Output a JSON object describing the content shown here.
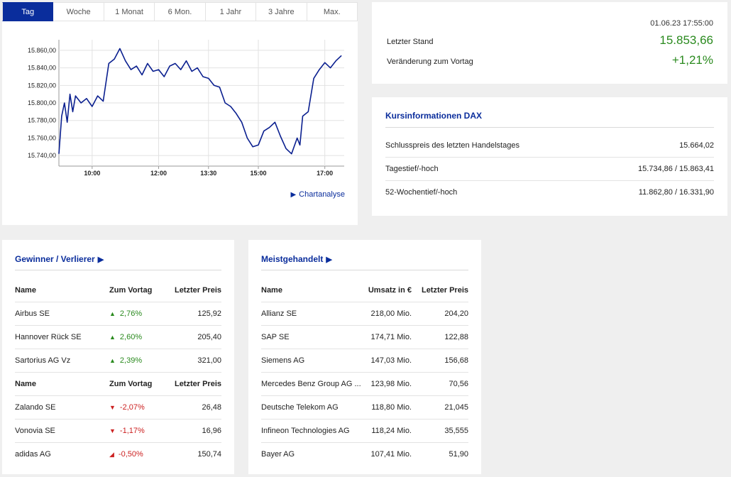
{
  "chart": {
    "tabs": [
      {
        "label": "Tag",
        "active": true
      },
      {
        "label": "Woche",
        "active": false
      },
      {
        "label": "1 Monat",
        "active": false
      },
      {
        "label": "6 Mon.",
        "active": false
      },
      {
        "label": "1 Jahr",
        "active": false
      },
      {
        "label": "3 Jahre",
        "active": false
      },
      {
        "label": "Max.",
        "active": false
      }
    ],
    "link_label": "Chartanalyse"
  },
  "chart_data": {
    "type": "line",
    "x_tick_labels": [
      "10:00",
      "12:00",
      "13:30",
      "15:00",
      "17:00"
    ],
    "x_tick_times": [
      "10:00",
      "12:00",
      "13:30",
      "15:00",
      "17:00"
    ],
    "y_tick_labels": [
      "15.740,00",
      "15.760,00",
      "15.780,00",
      "15.800,00",
      "15.820,00",
      "15.840,00",
      "15.860,00"
    ],
    "ylim": [
      15728,
      15868
    ],
    "xlim": [
      "09:00",
      "17:35"
    ],
    "grid": true,
    "line_color": "#0a1f8f",
    "x": [
      "09:00",
      "09:05",
      "09:10",
      "09:15",
      "09:20",
      "09:25",
      "09:30",
      "09:40",
      "09:50",
      "10:00",
      "10:10",
      "10:20",
      "10:30",
      "10:40",
      "10:50",
      "11:00",
      "11:10",
      "11:20",
      "11:30",
      "11:40",
      "11:50",
      "12:00",
      "12:10",
      "12:20",
      "12:30",
      "12:40",
      "12:50",
      "13:00",
      "13:10",
      "13:20",
      "13:30",
      "13:40",
      "13:50",
      "14:00",
      "14:10",
      "14:20",
      "14:30",
      "14:40",
      "14:50",
      "15:00",
      "15:10",
      "15:20",
      "15:30",
      "15:40",
      "15:50",
      "16:00",
      "16:10",
      "16:15",
      "16:20",
      "16:30",
      "16:40",
      "16:50",
      "17:00",
      "17:10",
      "17:20",
      "17:30"
    ],
    "values": [
      15742,
      15785,
      15800,
      15778,
      15810,
      15790,
      15808,
      15800,
      15805,
      15796,
      15808,
      15802,
      15845,
      15850,
      15862,
      15848,
      15838,
      15842,
      15832,
      15845,
      15836,
      15838,
      15830,
      15842,
      15845,
      15838,
      15848,
      15836,
      15840,
      15830,
      15828,
      15820,
      15818,
      15800,
      15796,
      15788,
      15778,
      15760,
      15750,
      15752,
      15768,
      15772,
      15778,
      15762,
      15748,
      15742,
      15760,
      15752,
      15785,
      15790,
      15828,
      15838,
      15846,
      15840,
      15848,
      15854
    ]
  },
  "quote": {
    "datetime": "01.06.23 17:55:00",
    "last_label": "Letzter Stand",
    "last_value": "15.853,66",
    "change_label": "Veränderung zum Vortag",
    "change_value": "+1,21%",
    "positive_color": "#2a8a1e"
  },
  "info": {
    "title": "Kursinformationen DAX",
    "rows": [
      {
        "label": "Schlusspreis des letzten Handelstages",
        "value": "15.664,02"
      },
      {
        "label": "Tagestief/-hoch",
        "value": "15.734,86 / 15.863,41"
      },
      {
        "label": "52-Wochentief/-hoch",
        "value": "11.862,80 / 16.331,90"
      }
    ]
  },
  "movers": {
    "title": "Gewinner / Verlierer",
    "title_icon": "play-icon",
    "head": {
      "name": "Name",
      "change": "Zum Vortag",
      "price": "Letzter Preis"
    },
    "winners": [
      {
        "name": "Airbus SE",
        "change": "2,76%",
        "price": "125,92"
      },
      {
        "name": "Hannover Rück SE",
        "change": "2,60%",
        "price": "205,40"
      },
      {
        "name": "Sartorius AG Vz",
        "change": "2,39%",
        "price": "321,00"
      }
    ],
    "losers": [
      {
        "name": "Zalando SE",
        "change": "-2,07%",
        "price": "26,48"
      },
      {
        "name": "Vonovia SE",
        "change": "-1,17%",
        "price": "16,96"
      },
      {
        "name": "adidas AG",
        "change": "-0,50%",
        "price": "150,74"
      }
    ],
    "up_color": "#2a8a1e",
    "down_color": "#cc2222"
  },
  "active": {
    "title": "Meistgehandelt",
    "title_icon": "play-icon",
    "head": {
      "name": "Name",
      "volume": "Umsatz in €",
      "price": "Letzter Preis"
    },
    "rows": [
      {
        "name": "Allianz SE",
        "volume": "218,00 Mio.",
        "price": "204,20"
      },
      {
        "name": "SAP SE",
        "volume": "174,71 Mio.",
        "price": "122,88"
      },
      {
        "name": "Siemens AG",
        "volume": "147,03 Mio.",
        "price": "156,68"
      },
      {
        "name": "Mercedes Benz Group AG ...",
        "volume": "123,98 Mio.",
        "price": "70,56"
      },
      {
        "name": "Deutsche Telekom AG",
        "volume": "118,80 Mio.",
        "price": "21,045"
      },
      {
        "name": "Infineon Technologies AG",
        "volume": "118,24 Mio.",
        "price": "35,555"
      },
      {
        "name": "Bayer AG",
        "volume": "107,41 Mio.",
        "price": "51,90"
      }
    ]
  }
}
